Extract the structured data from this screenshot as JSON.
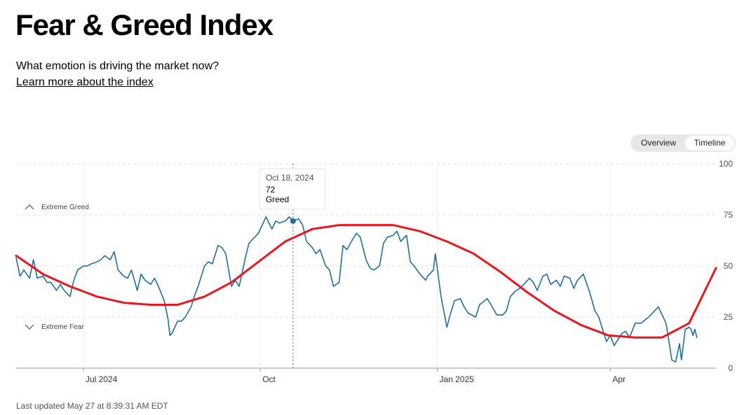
{
  "header": {
    "title": "Fear & Greed Index",
    "subtitle": "What emotion is driving the market now?",
    "learn_more": "Learn more about the index"
  },
  "toggle": {
    "overview_label": "Overview",
    "timeline_label": "Timeline",
    "selected": "Timeline"
  },
  "footer": {
    "last_updated": "Last updated May 27 at 8:39:31 AM EDT"
  },
  "colors": {
    "index_line": "#1f6f9c",
    "trend_line": "#e8171d",
    "grid": "#dddddd"
  },
  "chart_data": {
    "type": "line",
    "x_range": [
      "2024-05-27",
      "2025-05-26"
    ],
    "ylim": [
      0,
      100
    ],
    "y_ticks": [
      0,
      25,
      50,
      75,
      100
    ],
    "x_ticks": [
      {
        "label": "Jul 2024",
        "date": "2024-07-01"
      },
      {
        "label": "Oct",
        "date": "2024-10-01"
      },
      {
        "label": "Jan 2025",
        "date": "2025-01-01"
      },
      {
        "label": "Apr",
        "date": "2025-04-01"
      }
    ],
    "zones": [
      {
        "label": "Extreme Greed",
        "direction": "up"
      },
      {
        "label": "Extreme Fear",
        "direction": "down"
      }
    ],
    "tooltip": {
      "date": "2024-10-18",
      "date_label": "Oct 18, 2024",
      "value": "72",
      "rating": "Greed"
    },
    "series": [
      {
        "kind": "index",
        "points": [
          [
            "2024-05-27",
            54
          ],
          [
            "2024-05-29",
            45
          ],
          [
            "2024-05-31",
            48
          ],
          [
            "2024-06-03",
            44
          ],
          [
            "2024-06-05",
            53
          ],
          [
            "2024-06-07",
            44
          ],
          [
            "2024-06-10",
            45
          ],
          [
            "2024-06-12",
            42
          ],
          [
            "2024-06-14",
            42
          ],
          [
            "2024-06-17",
            38
          ],
          [
            "2024-06-19",
            41
          ],
          [
            "2024-06-21",
            38
          ],
          [
            "2024-06-24",
            35
          ],
          [
            "2024-06-26",
            43
          ],
          [
            "2024-06-28",
            48
          ],
          [
            "2024-07-01",
            50
          ],
          [
            "2024-07-03",
            50
          ],
          [
            "2024-07-05",
            51
          ],
          [
            "2024-07-08",
            52
          ],
          [
            "2024-07-10",
            53
          ],
          [
            "2024-07-12",
            55
          ],
          [
            "2024-07-15",
            53
          ],
          [
            "2024-07-17",
            57
          ],
          [
            "2024-07-19",
            48
          ],
          [
            "2024-07-22",
            45
          ],
          [
            "2024-07-24",
            44
          ],
          [
            "2024-07-26",
            48
          ],
          [
            "2024-07-29",
            38
          ],
          [
            "2024-07-31",
            46
          ],
          [
            "2024-08-02",
            43
          ],
          [
            "2024-08-05",
            41
          ],
          [
            "2024-08-07",
            44
          ],
          [
            "2024-08-09",
            40
          ],
          [
            "2024-08-12",
            33
          ],
          [
            "2024-08-14",
            24
          ],
          [
            "2024-08-15",
            16
          ],
          [
            "2024-08-16",
            17
          ],
          [
            "2024-08-19",
            23
          ],
          [
            "2024-08-21",
            23
          ],
          [
            "2024-08-23",
            25
          ],
          [
            "2024-08-26",
            30
          ],
          [
            "2024-08-28",
            36
          ],
          [
            "2024-08-30",
            41
          ],
          [
            "2024-09-02",
            50
          ],
          [
            "2024-09-04",
            52
          ],
          [
            "2024-09-06",
            51
          ],
          [
            "2024-09-09",
            60
          ],
          [
            "2024-09-11",
            59
          ],
          [
            "2024-09-13",
            56
          ],
          [
            "2024-09-16",
            40
          ],
          [
            "2024-09-18",
            43
          ],
          [
            "2024-09-20",
            40
          ],
          [
            "2024-09-23",
            53
          ],
          [
            "2024-09-25",
            61
          ],
          [
            "2024-09-27",
            63
          ],
          [
            "2024-09-30",
            66
          ],
          [
            "2024-10-02",
            70
          ],
          [
            "2024-10-04",
            74
          ],
          [
            "2024-10-07",
            68
          ],
          [
            "2024-10-09",
            72
          ],
          [
            "2024-10-11",
            71
          ],
          [
            "2024-10-14",
            72
          ],
          [
            "2024-10-16",
            74
          ],
          [
            "2024-10-18",
            72
          ],
          [
            "2024-10-21",
            73
          ],
          [
            "2024-10-23",
            70
          ],
          [
            "2024-10-25",
            62
          ],
          [
            "2024-10-28",
            59
          ],
          [
            "2024-10-30",
            56
          ],
          [
            "2024-11-01",
            58
          ],
          [
            "2024-11-04",
            50
          ],
          [
            "2024-11-06",
            48
          ],
          [
            "2024-11-08",
            40
          ],
          [
            "2024-11-11",
            42
          ],
          [
            "2024-11-13",
            60
          ],
          [
            "2024-11-15",
            58
          ],
          [
            "2024-11-18",
            63
          ],
          [
            "2024-11-20",
            66
          ],
          [
            "2024-11-22",
            64
          ],
          [
            "2024-11-25",
            53
          ],
          [
            "2024-11-27",
            49
          ],
          [
            "2024-11-29",
            48
          ],
          [
            "2024-12-02",
            50
          ],
          [
            "2024-12-04",
            61
          ],
          [
            "2024-12-06",
            64
          ],
          [
            "2024-12-09",
            65
          ],
          [
            "2024-12-11",
            67
          ],
          [
            "2024-12-13",
            62
          ],
          [
            "2024-12-16",
            65
          ],
          [
            "2024-12-18",
            52
          ],
          [
            "2024-12-20",
            50
          ],
          [
            "2024-12-23",
            46
          ],
          [
            "2024-12-26",
            43
          ],
          [
            "2024-12-27",
            45
          ],
          [
            "2024-12-30",
            48
          ],
          [
            "2024-12-31",
            56
          ],
          [
            "2025-01-03",
            35
          ],
          [
            "2025-01-06",
            20
          ],
          [
            "2025-01-08",
            27
          ],
          [
            "2025-01-10",
            33
          ],
          [
            "2025-01-13",
            34
          ],
          [
            "2025-01-15",
            30
          ],
          [
            "2025-01-17",
            27
          ],
          [
            "2025-01-21",
            25
          ],
          [
            "2025-01-23",
            31
          ],
          [
            "2025-01-27",
            34
          ],
          [
            "2025-01-29",
            31
          ],
          [
            "2025-02-01",
            26
          ],
          [
            "2025-02-04",
            26
          ],
          [
            "2025-02-06",
            28
          ],
          [
            "2025-02-08",
            35
          ],
          [
            "2025-02-11",
            38
          ],
          [
            "2025-02-13",
            39
          ],
          [
            "2025-02-16",
            42
          ],
          [
            "2025-02-18",
            44
          ],
          [
            "2025-02-20",
            42
          ],
          [
            "2025-02-22",
            38
          ],
          [
            "2025-02-25",
            45
          ],
          [
            "2025-02-27",
            46
          ],
          [
            "2025-03-01",
            41
          ],
          [
            "2025-03-04",
            43
          ],
          [
            "2025-03-06",
            40
          ],
          [
            "2025-03-08",
            45
          ],
          [
            "2025-03-11",
            44
          ],
          [
            "2025-03-13",
            39
          ],
          [
            "2025-03-15",
            43
          ],
          [
            "2025-03-18",
            46
          ],
          [
            "2025-03-21",
            38
          ],
          [
            "2025-03-24",
            28
          ],
          [
            "2025-03-26",
            25
          ],
          [
            "2025-03-28",
            19
          ],
          [
            "2025-03-30",
            13
          ],
          [
            "2025-04-01",
            16
          ],
          [
            "2025-04-03",
            11
          ],
          [
            "2025-04-05",
            14
          ],
          [
            "2025-04-07",
            17
          ],
          [
            "2025-04-09",
            18
          ],
          [
            "2025-04-11",
            15
          ],
          [
            "2025-04-14",
            22
          ],
          [
            "2025-04-17",
            22
          ],
          [
            "2025-04-21",
            25
          ],
          [
            "2025-04-24",
            28
          ],
          [
            "2025-04-26",
            30
          ],
          [
            "2025-04-28",
            26
          ],
          [
            "2025-04-30",
            22
          ],
          [
            "2025-05-02",
            10
          ],
          [
            "2025-05-03",
            4
          ],
          [
            "2025-05-05",
            3
          ],
          [
            "2025-05-07",
            12
          ],
          [
            "2025-05-08",
            4
          ],
          [
            "2025-05-10",
            19
          ],
          [
            "2025-05-12",
            20
          ],
          [
            "2025-05-13",
            19
          ],
          [
            "2025-05-14",
            16
          ],
          [
            "2025-05-15",
            19
          ],
          [
            "2025-05-16",
            15
          ]
        ]
      },
      {
        "kind": "trend",
        "points": [
          [
            "2024-05-27",
            55
          ],
          [
            "2024-06-10",
            46
          ],
          [
            "2024-06-24",
            40
          ],
          [
            "2024-07-08",
            35
          ],
          [
            "2024-07-22",
            32
          ],
          [
            "2024-08-05",
            31
          ],
          [
            "2024-08-19",
            31
          ],
          [
            "2024-09-02",
            35
          ],
          [
            "2024-09-16",
            42
          ],
          [
            "2024-09-30",
            52
          ],
          [
            "2024-10-14",
            62
          ],
          [
            "2024-10-28",
            68
          ],
          [
            "2024-11-11",
            70
          ],
          [
            "2024-11-25",
            70
          ],
          [
            "2024-12-09",
            70
          ],
          [
            "2024-12-23",
            67
          ],
          [
            "2025-01-06",
            62
          ],
          [
            "2025-01-20",
            56
          ],
          [
            "2025-02-03",
            47
          ],
          [
            "2025-02-17",
            37
          ],
          [
            "2025-03-03",
            28
          ],
          [
            "2025-03-17",
            21
          ],
          [
            "2025-03-31",
            16
          ],
          [
            "2025-04-14",
            15
          ],
          [
            "2025-04-28",
            15
          ],
          [
            "2025-05-12",
            22
          ],
          [
            "2025-05-26",
            49
          ]
        ]
      }
    ]
  }
}
